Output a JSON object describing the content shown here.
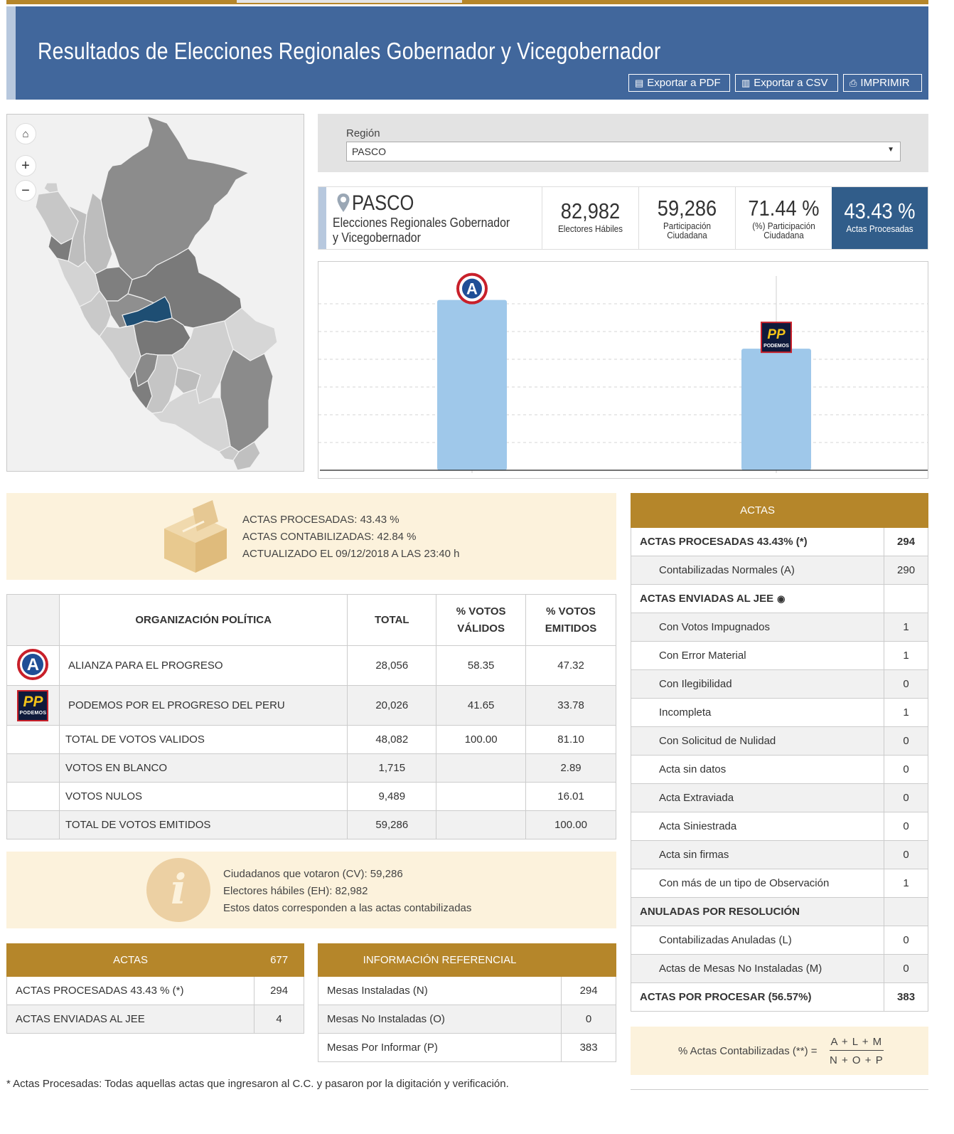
{
  "header": {
    "title": "Resultados de Elecciones Regionales Gobernador y Vicegobernador",
    "buttons": {
      "pdf": "Exportar a PDF",
      "csv": "Exportar a CSV",
      "print": "IMPRIMIR"
    }
  },
  "map": {
    "home_icon": "home-icon",
    "zoom_in": "+",
    "zoom_out": "−",
    "highlight_color": "#1e4e73"
  },
  "region": {
    "label": "Región",
    "value": "PASCO"
  },
  "summary": {
    "name": "PASCO",
    "subtitle": "Elecciones Regionales Gobernador y Vicegobernador",
    "electores": {
      "value": "82,982",
      "label": "Electores Hábiles"
    },
    "participacion": {
      "value": "59,286",
      "label": "Participación Ciudadana"
    },
    "participacion_pct": {
      "value": "71.44 %",
      "label": "(%) Participación Ciudadana"
    },
    "actas_pct": {
      "value": "43.43 %",
      "label": "Actas Procesadas"
    }
  },
  "chart_data": {
    "type": "bar",
    "categories": [
      "ALIANZA PARA EL PROGRESO",
      "PODEMOS POR EL PROGRESO DEL PERU"
    ],
    "values": [
      28056,
      20026
    ],
    "bar_color": "#9fc8ea",
    "grid": true
  },
  "progress_box": {
    "line1": "ACTAS PROCESADAS: 43.43 %",
    "line2": "ACTAS CONTABILIZADAS: 42.84 %",
    "line3": "ACTUALIZADO EL 09/12/2018 A LAS 23:40 h"
  },
  "results": {
    "headers": {
      "org": "ORGANIZACIÓN POLÍTICA",
      "total": "TOTAL",
      "validos_1": "% VOTOS",
      "validos_2": "VÁLIDOS",
      "emitidos_1": "% VOTOS",
      "emitidos_2": "EMITIDOS"
    },
    "parties": [
      {
        "logo": "alianza-para-el-progreso-logo",
        "name": "ALIANZA PARA EL PROGRESO",
        "total": "28,056",
        "validos": "58.35",
        "emitidos": "47.32"
      },
      {
        "logo": "podemos-logo",
        "name": "PODEMOS POR EL PROGRESO DEL PERU",
        "total": "20,026",
        "validos": "41.65",
        "emitidos": "33.78"
      }
    ],
    "totals": [
      {
        "name": "TOTAL DE VOTOS VALIDOS",
        "total": "48,082",
        "validos": "100.00",
        "emitidos": "81.10"
      },
      {
        "name": "VOTOS EN BLANCO",
        "total": "1,715",
        "validos": "",
        "emitidos": "2.89"
      },
      {
        "name": "VOTOS NULOS",
        "total": "9,489",
        "validos": "",
        "emitidos": "16.01"
      },
      {
        "name": "TOTAL DE VOTOS EMITIDOS",
        "total": "59,286",
        "validos": "",
        "emitidos": "100.00"
      }
    ],
    "podemos_logo_text": "PODEMOS"
  },
  "info_box": {
    "line1": "Ciudadanos que votaron (CV): 59,286",
    "line2": "Electores hábiles (EH): 82,982",
    "line3": "Estos datos corresponden a las actas contabilizadas"
  },
  "actas_small": {
    "header": "ACTAS",
    "header_count": "677",
    "rows": [
      {
        "label": "ACTAS PROCESADAS 43.43 % (*)",
        "value": "294"
      },
      {
        "label": "ACTAS ENVIADAS AL JEE",
        "value": "4"
      }
    ]
  },
  "info_ref": {
    "header": "INFORMACIÓN REFERENCIAL",
    "rows": [
      {
        "label": "Mesas Instaladas (N)",
        "value": "294"
      },
      {
        "label": "Mesas No Instaladas (O)",
        "value": "0"
      },
      {
        "label": "Mesas Por Informar (P)",
        "value": "383"
      }
    ]
  },
  "actas_detail": {
    "header": "ACTAS",
    "rows": [
      {
        "label": "ACTAS PROCESADAS 43.43% (*)",
        "value": "294",
        "kind": "bold"
      },
      {
        "label": "Contabilizadas Normales (A)",
        "value": "290",
        "kind": "sub"
      },
      {
        "label": "ACTAS ENVIADAS AL JEE",
        "value": "",
        "kind": "bold-eye"
      },
      {
        "label": "Con Votos Impugnados",
        "value": "1",
        "kind": "sub"
      },
      {
        "label": "Con Error Material",
        "value": "1",
        "kind": "sub"
      },
      {
        "label": "Con Ilegibilidad",
        "value": "0",
        "kind": "sub"
      },
      {
        "label": "Incompleta",
        "value": "1",
        "kind": "sub"
      },
      {
        "label": "Con Solicitud de Nulidad",
        "value": "0",
        "kind": "sub"
      },
      {
        "label": "Acta sin datos",
        "value": "0",
        "kind": "sub"
      },
      {
        "label": "Acta Extraviada",
        "value": "0",
        "kind": "sub"
      },
      {
        "label": "Acta Siniestrada",
        "value": "0",
        "kind": "sub"
      },
      {
        "label": "Acta sin firmas",
        "value": "0",
        "kind": "sub"
      },
      {
        "label": "Con más de un tipo de Observación",
        "value": "1",
        "kind": "sub"
      },
      {
        "label": "ANULADAS POR RESOLUCIÓN",
        "value": "",
        "kind": "bold"
      },
      {
        "label": "Contabilizadas Anuladas (L)",
        "value": "0",
        "kind": "sub"
      },
      {
        "label": "Actas de Mesas No Instaladas (M)",
        "value": "0",
        "kind": "sub"
      },
      {
        "label": "ACTAS POR PROCESAR (56.57%)",
        "value": "383",
        "kind": "bold"
      }
    ]
  },
  "formula": {
    "label": "% Actas Contabilizadas (**) =",
    "numerator": "A + L + M",
    "denominator": "N + O + P"
  },
  "footnote": "* Actas Procesadas: Todas aquellas actas que ingresaron al C.C. y pasaron por la digitación y verificación."
}
